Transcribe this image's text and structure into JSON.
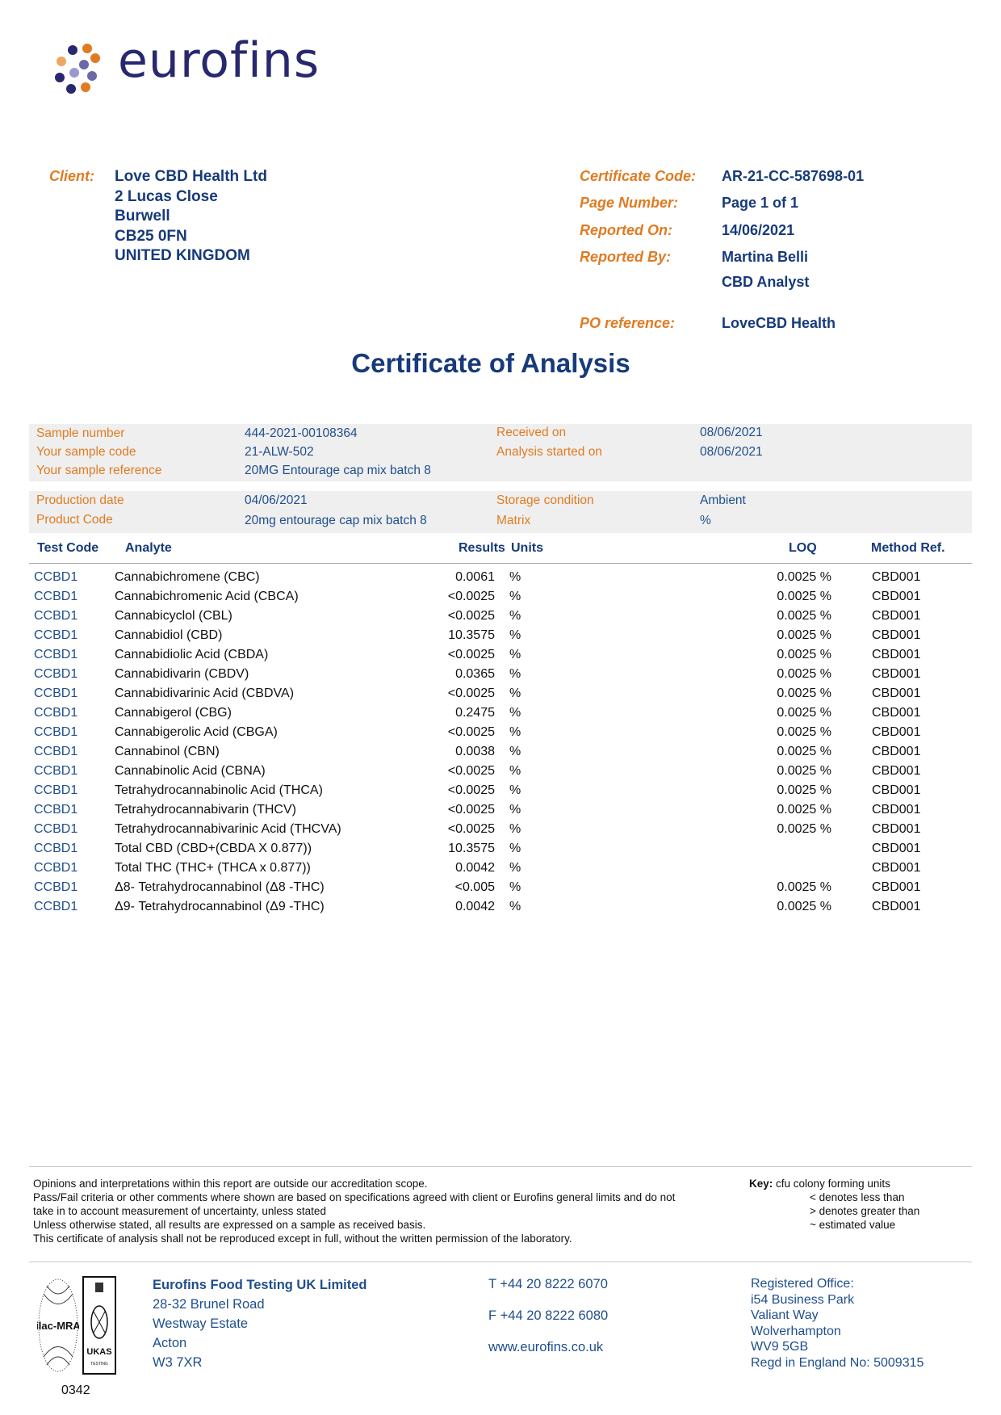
{
  "logo": {
    "text": "eurofins",
    "colors": {
      "navy": "#27286e",
      "orange": "#e07b22",
      "light_orange": "#f0a860",
      "purple": "#6a6aa8"
    }
  },
  "client": {
    "label": "Client:",
    "lines": [
      "Love CBD Health Ltd",
      "2 Lucas Close",
      "Burwell",
      "CB25 0FN",
      "UNITED KINGDOM"
    ]
  },
  "meta": [
    {
      "label": "Certificate Code:",
      "value": "AR-21-CC-587698-01"
    },
    {
      "label": "Page Number:",
      "value": "Page 1 of 1"
    },
    {
      "label": "Reported On:",
      "value": "14/06/2021"
    },
    {
      "label": "Reported By:",
      "value": "Martina Belli",
      "value2": "CBD Analyst"
    },
    {
      "label": "PO reference:",
      "value": "LoveCBD Health"
    }
  ],
  "title": "Certificate of Analysis",
  "sample": {
    "box1": [
      {
        "label": "Sample number",
        "value": "444-2021-00108364",
        "label2": "Received on",
        "value2": "08/06/2021"
      },
      {
        "label": "Your sample code",
        "value": "21-ALW-502",
        "label2": "Analysis started on",
        "value2": "08/06/2021"
      },
      {
        "label": "Your sample reference",
        "value": "20MG Entourage cap mix batch 8"
      }
    ],
    "box2": [
      {
        "label": "Production date",
        "value": "04/06/2021",
        "label2": "Storage condition",
        "value2": "Ambient"
      },
      {
        "label": "Product Code",
        "value": "20mg entourage cap mix batch 8",
        "label2": "Matrix",
        "value2": "%"
      }
    ]
  },
  "table": {
    "headers": {
      "code": "Test Code",
      "analyte": "Analyte",
      "results": "Results",
      "units": "Units",
      "loq": "LOQ",
      "method": "Method Ref."
    },
    "rows": [
      {
        "code": "CCBD1",
        "analyte": "Cannabichromene (CBC)",
        "result": "0.0061",
        "unit": "%",
        "loq": "0.0025 %",
        "method": "CBD001"
      },
      {
        "code": "CCBD1",
        "analyte": "Cannabichromenic Acid (CBCA)",
        "result": "<0.0025",
        "unit": "%",
        "loq": "0.0025 %",
        "method": "CBD001"
      },
      {
        "code": "CCBD1",
        "analyte": "Cannabicyclol (CBL)",
        "result": "<0.0025",
        "unit": "%",
        "loq": "0.0025 %",
        "method": "CBD001"
      },
      {
        "code": "CCBD1",
        "analyte": "Cannabidiol (CBD)",
        "result": "10.3575",
        "unit": "%",
        "loq": "0.0025 %",
        "method": "CBD001"
      },
      {
        "code": "CCBD1",
        "analyte": "Cannabidiolic Acid (CBDA)",
        "result": "<0.0025",
        "unit": "%",
        "loq": "0.0025 %",
        "method": "CBD001"
      },
      {
        "code": "CCBD1",
        "analyte": "Cannabidivarin (CBDV)",
        "result": "0.0365",
        "unit": "%",
        "loq": "0.0025 %",
        "method": "CBD001"
      },
      {
        "code": "CCBD1",
        "analyte": "Cannabidivarinic Acid (CBDVA)",
        "result": "<0.0025",
        "unit": "%",
        "loq": "0.0025 %",
        "method": "CBD001"
      },
      {
        "code": "CCBD1",
        "analyte": "Cannabigerol (CBG)",
        "result": "0.2475",
        "unit": "%",
        "loq": "0.0025 %",
        "method": "CBD001"
      },
      {
        "code": "CCBD1",
        "analyte": "Cannabigerolic Acid (CBGA)",
        "result": "<0.0025",
        "unit": "%",
        "loq": "0.0025 %",
        "method": "CBD001"
      },
      {
        "code": "CCBD1",
        "analyte": "Cannabinol (CBN)",
        "result": "0.0038",
        "unit": "%",
        "loq": "0.0025 %",
        "method": "CBD001"
      },
      {
        "code": "CCBD1",
        "analyte": "Cannabinolic Acid (CBNA)",
        "result": "<0.0025",
        "unit": "%",
        "loq": "0.0025 %",
        "method": "CBD001"
      },
      {
        "code": "CCBD1",
        "analyte": "Tetrahydrocannabinolic Acid (THCA)",
        "result": "<0.0025",
        "unit": "%",
        "loq": "0.0025 %",
        "method": "CBD001"
      },
      {
        "code": "CCBD1",
        "analyte": "Tetrahydrocannabivarin (THCV)",
        "result": "<0.0025",
        "unit": "%",
        "loq": "0.0025 %",
        "method": "CBD001"
      },
      {
        "code": "CCBD1",
        "analyte": "Tetrahydrocannabivarinic Acid (THCVA)",
        "result": "<0.0025",
        "unit": "%",
        "loq": "0.0025 %",
        "method": "CBD001"
      },
      {
        "code": "CCBD1",
        "analyte": "Total CBD (CBD+(CBDA X 0.877))",
        "result": "10.3575",
        "unit": "%",
        "loq": "",
        "method": "CBD001"
      },
      {
        "code": "CCBD1",
        "analyte": "Total THC (THC+ (THCA x 0.877))",
        "result": "0.0042",
        "unit": "%",
        "loq": "",
        "method": "CBD001"
      },
      {
        "code": "CCBD1",
        "analyte": "Δ8- Tetrahydrocannabinol (Δ8 -THC)",
        "result": "<0.005",
        "unit": "%",
        "loq": "0.0025 %",
        "method": "CBD001"
      },
      {
        "code": "CCBD1",
        "analyte": "Δ9- Tetrahydrocannabinol (Δ9 -THC)",
        "result": "0.0042",
        "unit": "%",
        "loq": "0.0025 %",
        "method": "CBD001"
      }
    ]
  },
  "notes": [
    "Opinions and interpretations within this report are outside our accreditation scope.",
    "Pass/Fail criteria or other comments where shown are based on specifications agreed with client or Eurofins general limits and do not",
    "take in to account measurement of uncertainty, unless stated",
    "Unless otherwise stated, all results are expressed on a sample as received basis.",
    "This certificate of analysis shall not be reproduced except in full, without the written permission of the laboratory."
  ],
  "key": {
    "label": "Key:",
    "items": [
      "cfu colony forming units",
      "< denotes less than",
      "> denotes greater than",
      "~ estimated value"
    ]
  },
  "footer": {
    "accreditation": {
      "ilac": "ilac-MRA",
      "ukas": "UKAS",
      "ukas_sub": "TESTING",
      "number": "0342"
    },
    "company": [
      "Eurofins Food Testing UK Limited",
      "28-32 Brunel Road",
      "Westway Estate",
      "Acton",
      "W3 7XR"
    ],
    "phone": "T  +44 20 8222 6070",
    "fax": "F  +44 20 8222 6080",
    "web": "www.eurofins.co.uk",
    "registered": [
      "Registered Office:",
      "i54 Business Park",
      "Valiant Way",
      "Wolverhampton",
      "WV9 5GB",
      "Regd in England No: 5009315"
    ]
  }
}
